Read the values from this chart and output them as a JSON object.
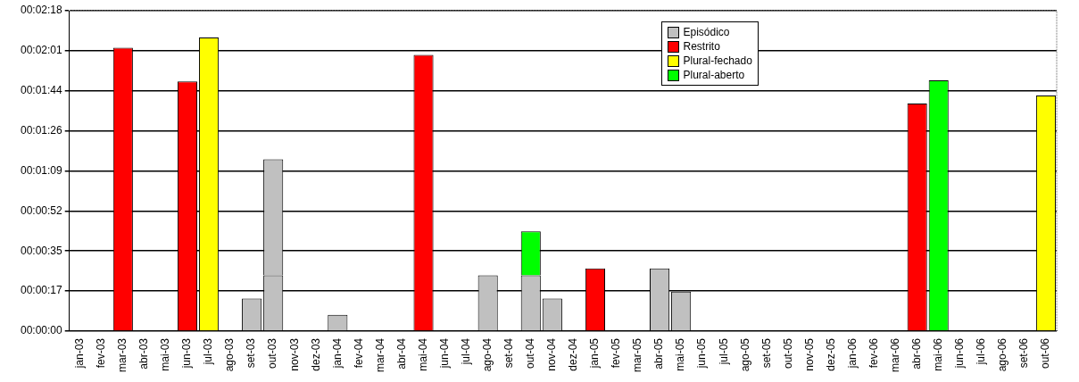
{
  "chart_data": {
    "type": "bar",
    "stacked": true,
    "grid": "y",
    "legend": "top right",
    "categories": [
      "jan-03",
      "fev-03",
      "mar-03",
      "abr-03",
      "mai-03",
      "jun-03",
      "jul-03",
      "ago-03",
      "set-03",
      "out-03",
      "nov-03",
      "dez-03",
      "jan-04",
      "fev-04",
      "mar-04",
      "abr-04",
      "mai-04",
      "jun-04",
      "jul-04",
      "ago-04",
      "set-04",
      "out-04",
      "nov-04",
      "dez-04",
      "jan-05",
      "fev-05",
      "mar-05",
      "abr-05",
      "mai-05",
      "jun-05",
      "jul-05",
      "ago-05",
      "set-05",
      "out-05",
      "nov-05",
      "dez-05",
      "jan-06",
      "fev-06",
      "mar-06",
      "abr-06",
      "mai-06",
      "jun-06",
      "jul-06",
      "ago-06",
      "set-06",
      "out-06"
    ],
    "ylim": [
      0,
      138
    ],
    "yticks": [
      {
        "value": 0,
        "label": "00:00:00"
      },
      {
        "value": 17.25,
        "label": "00:00:17"
      },
      {
        "value": 34.5,
        "label": "00:00:35"
      },
      {
        "value": 51.75,
        "label": "00:00:52"
      },
      {
        "value": 69,
        "label": "00:01:09"
      },
      {
        "value": 86.25,
        "label": "00:01:26"
      },
      {
        "value": 103.5,
        "label": "00:01:44"
      },
      {
        "value": 120.75,
        "label": "00:02:01"
      },
      {
        "value": 138,
        "label": "00:02:18"
      }
    ],
    "series": [
      {
        "name": "Episódico",
        "color": "#c0c0c0",
        "values": [
          null,
          null,
          null,
          null,
          null,
          null,
          null,
          null,
          14,
          24,
          null,
          null,
          7,
          null,
          null,
          null,
          null,
          null,
          null,
          24,
          null,
          24,
          14,
          null,
          null,
          null,
          null,
          27,
          17,
          null,
          null,
          null,
          null,
          null,
          null,
          null,
          null,
          null,
          null,
          null,
          null,
          null,
          null,
          null,
          null,
          null
        ]
      },
      {
        "name": "Restrito",
        "color": "#ff0000",
        "values": [
          null,
          null,
          122,
          null,
          null,
          107.5,
          null,
          null,
          null,
          null,
          null,
          null,
          null,
          null,
          null,
          null,
          119,
          null,
          null,
          null,
          null,
          null,
          null,
          null,
          27,
          null,
          null,
          null,
          null,
          null,
          null,
          null,
          null,
          null,
          null,
          null,
          null,
          null,
          null,
          98,
          null,
          null,
          null,
          null,
          null,
          null
        ]
      },
      {
        "name": "Plural-fechado",
        "color": "#ffff00",
        "values": [
          null,
          null,
          null,
          null,
          null,
          null,
          126.5,
          null,
          null,
          null,
          null,
          null,
          null,
          null,
          null,
          null,
          null,
          null,
          null,
          null,
          null,
          null,
          null,
          null,
          null,
          null,
          null,
          null,
          null,
          null,
          null,
          null,
          null,
          null,
          null,
          null,
          null,
          null,
          null,
          null,
          null,
          null,
          null,
          null,
          null,
          101.5
        ]
      },
      {
        "name": "Plural-aberto",
        "color": "#00ff00",
        "values": [
          null,
          null,
          null,
          null,
          null,
          null,
          null,
          null,
          null,
          null,
          null,
          null,
          null,
          null,
          null,
          null,
          null,
          null,
          null,
          null,
          null,
          19,
          null,
          null,
          null,
          null,
          null,
          null,
          null,
          null,
          null,
          null,
          null,
          null,
          null,
          null,
          null,
          null,
          null,
          null,
          108,
          null,
          null,
          null,
          null,
          null
        ]
      },
      {
        "color": "#c0c0c0",
        "values": [
          null,
          null,
          null,
          null,
          null,
          null,
          null,
          null,
          null,
          50,
          null,
          null,
          null,
          null,
          null,
          null,
          null,
          null,
          null,
          null,
          null,
          null,
          null,
          null,
          null,
          null,
          null,
          null,
          null,
          null,
          null,
          null,
          null,
          null,
          null,
          null,
          null,
          null,
          null,
          null,
          null,
          null,
          null,
          null,
          null,
          null
        ]
      }
    ]
  }
}
